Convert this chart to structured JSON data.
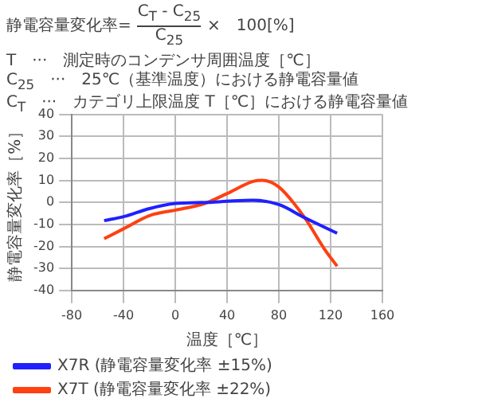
{
  "chart_data": {
    "type": "line",
    "xlabel": "温度［℃］",
    "ylabel": "静電容量変化率［%］",
    "annotations": [
      "静電容量変化率=",
      "C$_{T}$ - C$_{25}$",
      "C$_{25}$",
      "×　100[%]",
      "T　···　測定時のコンデンサ周囲温度［℃］",
      "C$_{25}$　···　25℃（基準温度）における静電容量値",
      "C$_{T}$　···　カテゴリ上限温度 T［℃］における静電容量値"
    ],
    "series": [
      {
        "name": "X7R (静電容量変化率 ±15%)",
        "color": "#2020ff",
        "x": [
          -55,
          -40,
          -20,
          0,
          25,
          40,
          60,
          80,
          100,
          125
        ],
        "values": [
          -8.3,
          -6.5,
          -2.8,
          -0.5,
          0,
          0.5,
          1,
          -1,
          -7,
          -14
        ]
      },
      {
        "name": "X7T (静電容量変化率 ±22%)",
        "color": "#ff4010",
        "x": [
          -55,
          -40,
          -20,
          0,
          20,
          25,
          40,
          60,
          67,
          80,
          100,
          115,
          125
        ],
        "values": [
          -16.5,
          -12,
          -6,
          -3.5,
          -1,
          0,
          4,
          9.5,
          10,
          7,
          -7,
          -21,
          -29
        ]
      }
    ],
    "xlim": [
      -80,
      160
    ],
    "xticks": [
      -80,
      -40,
      0,
      40,
      80,
      120,
      160
    ],
    "ylim": [
      -40,
      40
    ],
    "yticks": [
      -40,
      -30,
      -20,
      -10,
      0,
      10,
      20,
      30,
      40
    ],
    "grid": true,
    "legend": "bottom",
    "marker": "none",
    "line_style": "solid"
  }
}
